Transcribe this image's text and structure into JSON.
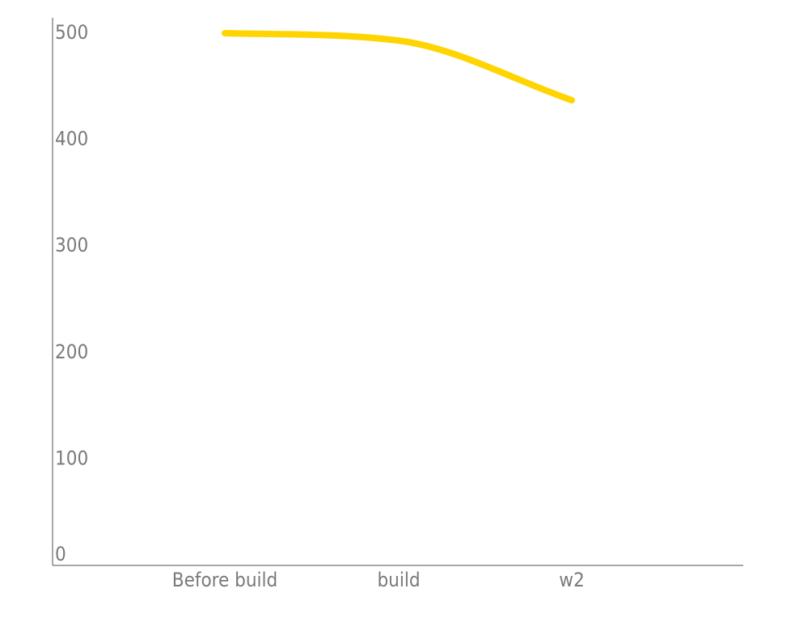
{
  "chart_data": {
    "type": "line",
    "title": "",
    "xlabel": "",
    "ylabel": "",
    "categories": [
      "Before build",
      "build",
      "w2"
    ],
    "series": [
      {
        "values": [
          500,
          493,
          437
        ],
        "color": "#FFD400"
      }
    ],
    "ylim": [
      0,
      500
    ],
    "yticks": [
      0,
      100,
      200,
      300,
      400,
      500
    ],
    "ytick_labels": [
      "0",
      "100",
      "200",
      "300",
      "400",
      "500"
    ],
    "grid": false,
    "smooth": true
  }
}
